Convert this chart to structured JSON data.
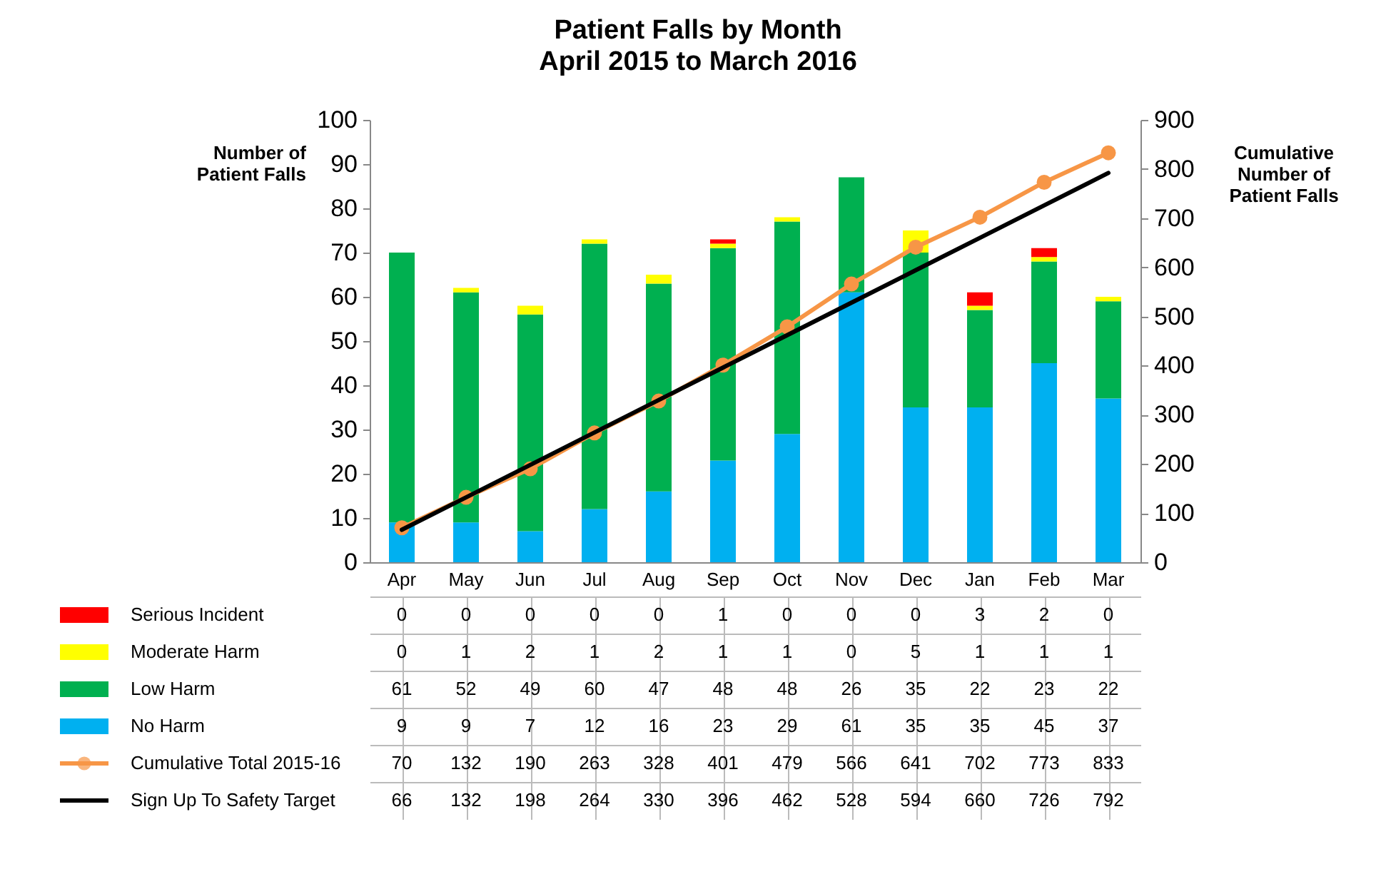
{
  "chart_data": {
    "type": "bar",
    "title": "Patient Falls by Month",
    "subtitle": "April 2015 to March 2016",
    "ylabel": "Number of Patient Falls",
    "y2label": "Cumulative Number of Patient Falls",
    "categories": [
      "Apr",
      "May",
      "Jun",
      "Jul",
      "Aug",
      "Sep",
      "Oct",
      "Nov",
      "Dec",
      "Jan",
      "Feb",
      "Mar"
    ],
    "stacked": true,
    "data_labels": true,
    "legend": "bottom",
    "ylim": [
      0,
      100
    ],
    "yticks": [
      0,
      10,
      20,
      30,
      40,
      50,
      60,
      70,
      80,
      90,
      100
    ],
    "y2lim": [
      0,
      900
    ],
    "y2ticks": [
      0,
      100,
      200,
      300,
      400,
      500,
      600,
      700,
      800,
      900
    ],
    "series": [
      {
        "name": "No Harm",
        "color": "#00b0f0",
        "values": [
          9,
          9,
          7,
          12,
          16,
          23,
          29,
          61,
          35,
          35,
          45,
          37
        ]
      },
      {
        "name": "Low Harm",
        "color": "#00b050",
        "values": [
          61,
          52,
          49,
          60,
          47,
          48,
          48,
          26,
          35,
          22,
          23,
          22
        ]
      },
      {
        "name": "Moderate Harm",
        "color": "#ffff00",
        "values": [
          0,
          1,
          2,
          1,
          2,
          1,
          1,
          0,
          5,
          1,
          1,
          1
        ]
      },
      {
        "name": "Serious Incident",
        "color": "#ff0000",
        "values": [
          0,
          0,
          0,
          0,
          0,
          1,
          0,
          0,
          0,
          3,
          2,
          0
        ]
      },
      {
        "name": "Cumulative Total 2015-16",
        "type": "line",
        "axis": "y2",
        "marker": "circle",
        "color": "#f79646",
        "values": [
          70,
          132,
          190,
          263,
          328,
          401,
          479,
          566,
          641,
          702,
          773,
          833
        ]
      },
      {
        "name": "Sign Up To Safety Target",
        "type": "line",
        "axis": "y2",
        "marker": "none",
        "color": "#000000",
        "values": [
          66,
          132,
          198,
          264,
          330,
          396,
          462,
          528,
          594,
          660,
          726,
          792
        ]
      }
    ]
  }
}
